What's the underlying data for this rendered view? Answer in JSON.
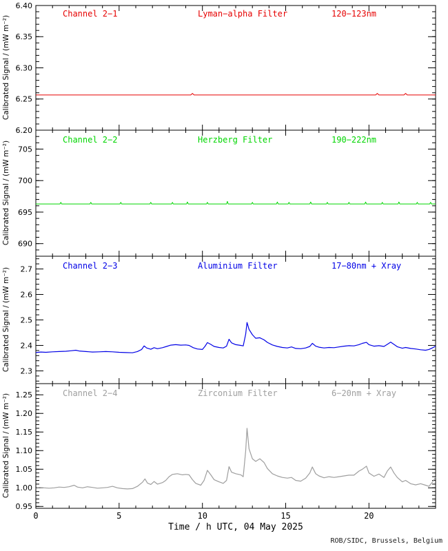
{
  "chart_data": {
    "type": "line",
    "xlabel": "Time / h UTC, 04 May 2025",
    "footer": "ROB/SIDC, Brussels, Belgium",
    "x_range": [
      0,
      24
    ],
    "x_major_ticks": [
      0,
      5,
      10,
      15,
      20
    ],
    "x_major_tick_labels": [
      "0",
      "5",
      "10",
      "15",
      "20"
    ],
    "x_minor_step": 1,
    "axis_color": "#000000",
    "panels": [
      {
        "channel": "Channel 2−1",
        "filter": "Lyman−alpha Filter",
        "band": "120−123nm",
        "color": "#e60000",
        "ylabel": "Calibrated Signal / (mW m⁻²)",
        "y_range": [
          6.2,
          6.4
        ],
        "y_major_values": [
          6.2,
          6.25,
          6.3,
          6.35,
          6.4
        ],
        "y_major_labels": [
          "6.20",
          "6.25",
          "6.30",
          "6.35",
          "6.40"
        ],
        "y_minor_step": 0.01,
        "stroke_width": 1,
        "points": [
          [
            0,
            6.2565
          ],
          [
            9.3,
            6.2565
          ],
          [
            9.4,
            6.259
          ],
          [
            9.5,
            6.2565
          ],
          [
            20.4,
            6.2565
          ],
          [
            20.5,
            6.259
          ],
          [
            20.6,
            6.2565
          ],
          [
            22.1,
            6.2565
          ],
          [
            22.2,
            6.259
          ],
          [
            22.3,
            6.2565
          ],
          [
            24,
            6.2565
          ]
        ]
      },
      {
        "channel": "Channel 2−2",
        "filter": "Herzberg Filter",
        "band": "190−222nm",
        "color": "#00d600",
        "ylabel": "Calibrated Signal / (mW m⁻²)",
        "y_range": [
          688,
          708
        ],
        "y_major_values": [
          690,
          695,
          700,
          705
        ],
        "y_major_labels": [
          "690",
          "695",
          "700",
          "705"
        ],
        "y_minor_step": 1,
        "stroke_width": 1,
        "points": [
          [
            0,
            696.3
          ],
          [
            1.45,
            696.3
          ],
          [
            1.5,
            696.55
          ],
          [
            1.55,
            696.3
          ],
          [
            3.25,
            696.3
          ],
          [
            3.3,
            696.55
          ],
          [
            3.35,
            696.3
          ],
          [
            5.05,
            696.3
          ],
          [
            5.1,
            696.55
          ],
          [
            5.15,
            696.3
          ],
          [
            6.85,
            696.3
          ],
          [
            6.9,
            696.55
          ],
          [
            6.95,
            696.3
          ],
          [
            8.15,
            696.3
          ],
          [
            8.2,
            696.55
          ],
          [
            8.25,
            696.3
          ],
          [
            9.05,
            696.3
          ],
          [
            9.1,
            696.6
          ],
          [
            9.15,
            696.3
          ],
          [
            10.25,
            696.3
          ],
          [
            10.3,
            696.55
          ],
          [
            10.35,
            696.3
          ],
          [
            11.45,
            696.3
          ],
          [
            11.5,
            696.7
          ],
          [
            11.55,
            696.3
          ],
          [
            12.95,
            696.3
          ],
          [
            13,
            696.55
          ],
          [
            13.05,
            696.3
          ],
          [
            14.45,
            696.3
          ],
          [
            14.5,
            696.6
          ],
          [
            14.55,
            696.3
          ],
          [
            15.15,
            696.3
          ],
          [
            15.2,
            696.55
          ],
          [
            15.25,
            696.3
          ],
          [
            16.45,
            696.3
          ],
          [
            16.5,
            696.6
          ],
          [
            16.55,
            696.3
          ],
          [
            17.45,
            696.3
          ],
          [
            17.5,
            696.55
          ],
          [
            17.55,
            696.3
          ],
          [
            18.75,
            696.3
          ],
          [
            18.8,
            696.55
          ],
          [
            18.85,
            696.3
          ],
          [
            19.75,
            696.3
          ],
          [
            19.8,
            696.6
          ],
          [
            19.85,
            696.3
          ],
          [
            20.75,
            696.3
          ],
          [
            20.8,
            696.55
          ],
          [
            20.85,
            696.3
          ],
          [
            21.75,
            696.3
          ],
          [
            21.8,
            696.6
          ],
          [
            21.85,
            696.3
          ],
          [
            22.85,
            696.3
          ],
          [
            22.9,
            696.55
          ],
          [
            22.95,
            696.3
          ],
          [
            23.65,
            696.3
          ],
          [
            23.7,
            696.55
          ],
          [
            23.75,
            696.3
          ],
          [
            24,
            696.3
          ]
        ]
      },
      {
        "channel": "Channel 2−3",
        "filter": "Aluminium Filter",
        "band": "17−80nm + Xray",
        "color": "#0000e6",
        "ylabel": "Calibrated Signal / (mW m⁻²)",
        "y_range": [
          2.25,
          2.75
        ],
        "y_major_values": [
          2.3,
          2.4,
          2.5,
          2.6,
          2.7
        ],
        "y_major_labels": [
          "2.3",
          "2.4",
          "2.5",
          "2.6",
          "2.7"
        ],
        "y_minor_step": 0.02,
        "stroke_width": 1.2,
        "points": [
          [
            0,
            2.372
          ],
          [
            0.3,
            2.374
          ],
          [
            0.6,
            2.373
          ],
          [
            1,
            2.375
          ],
          [
            1.4,
            2.376
          ],
          [
            1.8,
            2.377
          ],
          [
            2.1,
            2.379
          ],
          [
            2.4,
            2.381
          ],
          [
            2.6,
            2.378
          ],
          [
            3,
            2.376
          ],
          [
            3.4,
            2.374
          ],
          [
            3.8,
            2.375
          ],
          [
            4.2,
            2.376
          ],
          [
            4.6,
            2.375
          ],
          [
            5,
            2.373
          ],
          [
            5.4,
            2.372
          ],
          [
            5.8,
            2.371
          ],
          [
            6.1,
            2.376
          ],
          [
            6.35,
            2.384
          ],
          [
            6.5,
            2.398
          ],
          [
            6.65,
            2.39
          ],
          [
            6.9,
            2.385
          ],
          [
            7.1,
            2.391
          ],
          [
            7.3,
            2.387
          ],
          [
            7.6,
            2.391
          ],
          [
            7.85,
            2.396
          ],
          [
            8.1,
            2.401
          ],
          [
            8.4,
            2.403
          ],
          [
            8.7,
            2.401
          ],
          [
            9,
            2.402
          ],
          [
            9.2,
            2.4
          ],
          [
            9.45,
            2.391
          ],
          [
            9.7,
            2.386
          ],
          [
            10,
            2.384
          ],
          [
            10.15,
            2.396
          ],
          [
            10.3,
            2.411
          ],
          [
            10.5,
            2.404
          ],
          [
            10.7,
            2.396
          ],
          [
            11,
            2.392
          ],
          [
            11.25,
            2.39
          ],
          [
            11.45,
            2.397
          ],
          [
            11.6,
            2.424
          ],
          [
            11.75,
            2.41
          ],
          [
            12,
            2.403
          ],
          [
            12.3,
            2.4
          ],
          [
            12.45,
            2.398
          ],
          [
            12.6,
            2.445
          ],
          [
            12.68,
            2.49
          ],
          [
            12.8,
            2.463
          ],
          [
            13,
            2.442
          ],
          [
            13.2,
            2.428
          ],
          [
            13.45,
            2.43
          ],
          [
            13.7,
            2.422
          ],
          [
            13.9,
            2.412
          ],
          [
            14.2,
            2.402
          ],
          [
            14.5,
            2.396
          ],
          [
            14.8,
            2.392
          ],
          [
            15.1,
            2.39
          ],
          [
            15.35,
            2.394
          ],
          [
            15.6,
            2.388
          ],
          [
            15.9,
            2.387
          ],
          [
            16.2,
            2.39
          ],
          [
            16.45,
            2.396
          ],
          [
            16.6,
            2.408
          ],
          [
            16.8,
            2.397
          ],
          [
            17,
            2.393
          ],
          [
            17.3,
            2.39
          ],
          [
            17.6,
            2.392
          ],
          [
            17.9,
            2.391
          ],
          [
            18.2,
            2.394
          ],
          [
            18.5,
            2.397
          ],
          [
            18.8,
            2.399
          ],
          [
            19.1,
            2.398
          ],
          [
            19.4,
            2.403
          ],
          [
            19.6,
            2.408
          ],
          [
            19.85,
            2.412
          ],
          [
            20,
            2.403
          ],
          [
            20.3,
            2.397
          ],
          [
            20.6,
            2.399
          ],
          [
            20.9,
            2.396
          ],
          [
            21.1,
            2.404
          ],
          [
            21.3,
            2.413
          ],
          [
            21.5,
            2.404
          ],
          [
            21.7,
            2.395
          ],
          [
            22,
            2.389
          ],
          [
            22.2,
            2.392
          ],
          [
            22.5,
            2.388
          ],
          [
            22.8,
            2.386
          ],
          [
            23.1,
            2.383
          ],
          [
            23.4,
            2.381
          ],
          [
            23.6,
            2.384
          ],
          [
            23.8,
            2.39
          ],
          [
            24,
            2.397
          ]
        ]
      },
      {
        "channel": "Channel 2−4",
        "filter": "Zirconium Filter",
        "band": "6−20nm + Xray",
        "color": "#9e9e9e",
        "ylabel": "Calibrated Signal / (mW m⁻²)",
        "y_range": [
          0.945,
          1.28
        ],
        "y_major_values": [
          0.95,
          1.0,
          1.05,
          1.1,
          1.15,
          1.2,
          1.25
        ],
        "y_major_labels": [
          "0.95",
          "1.00",
          "1.05",
          "1.10",
          "1.15",
          "1.20",
          "1.25"
        ],
        "y_minor_step": 0.01,
        "stroke_width": 1.2,
        "points": [
          [
            0,
            0.998
          ],
          [
            0.2,
            1.001
          ],
          [
            0.5,
            1.0
          ],
          [
            0.8,
            0.999
          ],
          [
            1.1,
            1.0
          ],
          [
            1.4,
            1.002
          ],
          [
            1.7,
            1.001
          ],
          [
            2,
            1.003
          ],
          [
            2.3,
            1.007
          ],
          [
            2.5,
            1.002
          ],
          [
            2.8,
            1.0
          ],
          [
            3.1,
            1.003
          ],
          [
            3.4,
            1.001
          ],
          [
            3.7,
            0.999
          ],
          [
            4,
            1.0
          ],
          [
            4.3,
            1.001
          ],
          [
            4.6,
            1.004
          ],
          [
            4.9,
            1.0
          ],
          [
            5.2,
            0.998
          ],
          [
            5.5,
            0.997
          ],
          [
            5.8,
            0.998
          ],
          [
            6.1,
            1.004
          ],
          [
            6.4,
            1.015
          ],
          [
            6.55,
            1.024
          ],
          [
            6.7,
            1.013
          ],
          [
            6.9,
            1.009
          ],
          [
            7.1,
            1.017
          ],
          [
            7.3,
            1.01
          ],
          [
            7.6,
            1.014
          ],
          [
            7.8,
            1.02
          ],
          [
            8,
            1.03
          ],
          [
            8.2,
            1.036
          ],
          [
            8.5,
            1.038
          ],
          [
            8.8,
            1.035
          ],
          [
            9,
            1.036
          ],
          [
            9.2,
            1.035
          ],
          [
            9.4,
            1.022
          ],
          [
            9.6,
            1.012
          ],
          [
            9.9,
            1.007
          ],
          [
            10.1,
            1.02
          ],
          [
            10.3,
            1.047
          ],
          [
            10.5,
            1.035
          ],
          [
            10.7,
            1.022
          ],
          [
            11,
            1.016
          ],
          [
            11.25,
            1.012
          ],
          [
            11.45,
            1.02
          ],
          [
            11.6,
            1.057
          ],
          [
            11.75,
            1.042
          ],
          [
            12,
            1.038
          ],
          [
            12.3,
            1.035
          ],
          [
            12.45,
            1.03
          ],
          [
            12.6,
            1.1
          ],
          [
            12.68,
            1.16
          ],
          [
            12.8,
            1.105
          ],
          [
            13,
            1.078
          ],
          [
            13.2,
            1.071
          ],
          [
            13.45,
            1.078
          ],
          [
            13.7,
            1.068
          ],
          [
            13.9,
            1.052
          ],
          [
            14.2,
            1.038
          ],
          [
            14.5,
            1.032
          ],
          [
            14.8,
            1.028
          ],
          [
            15.1,
            1.026
          ],
          [
            15.35,
            1.028
          ],
          [
            15.6,
            1.02
          ],
          [
            15.9,
            1.018
          ],
          [
            16.2,
            1.026
          ],
          [
            16.45,
            1.04
          ],
          [
            16.6,
            1.056
          ],
          [
            16.8,
            1.038
          ],
          [
            17,
            1.032
          ],
          [
            17.3,
            1.027
          ],
          [
            17.6,
            1.03
          ],
          [
            17.9,
            1.028
          ],
          [
            18.2,
            1.03
          ],
          [
            18.5,
            1.032
          ],
          [
            18.8,
            1.034
          ],
          [
            19.1,
            1.034
          ],
          [
            19.4,
            1.045
          ],
          [
            19.6,
            1.05
          ],
          [
            19.85,
            1.058
          ],
          [
            20,
            1.04
          ],
          [
            20.3,
            1.031
          ],
          [
            20.6,
            1.037
          ],
          [
            20.9,
            1.028
          ],
          [
            21.1,
            1.045
          ],
          [
            21.3,
            1.056
          ],
          [
            21.5,
            1.04
          ],
          [
            21.7,
            1.028
          ],
          [
            22,
            1.016
          ],
          [
            22.2,
            1.02
          ],
          [
            22.5,
            1.011
          ],
          [
            22.8,
            1.008
          ],
          [
            23.1,
            1.011
          ],
          [
            23.4,
            1.007
          ],
          [
            23.6,
            1.004
          ],
          [
            23.8,
            1.015
          ],
          [
            24,
            1.028
          ]
        ]
      }
    ]
  }
}
